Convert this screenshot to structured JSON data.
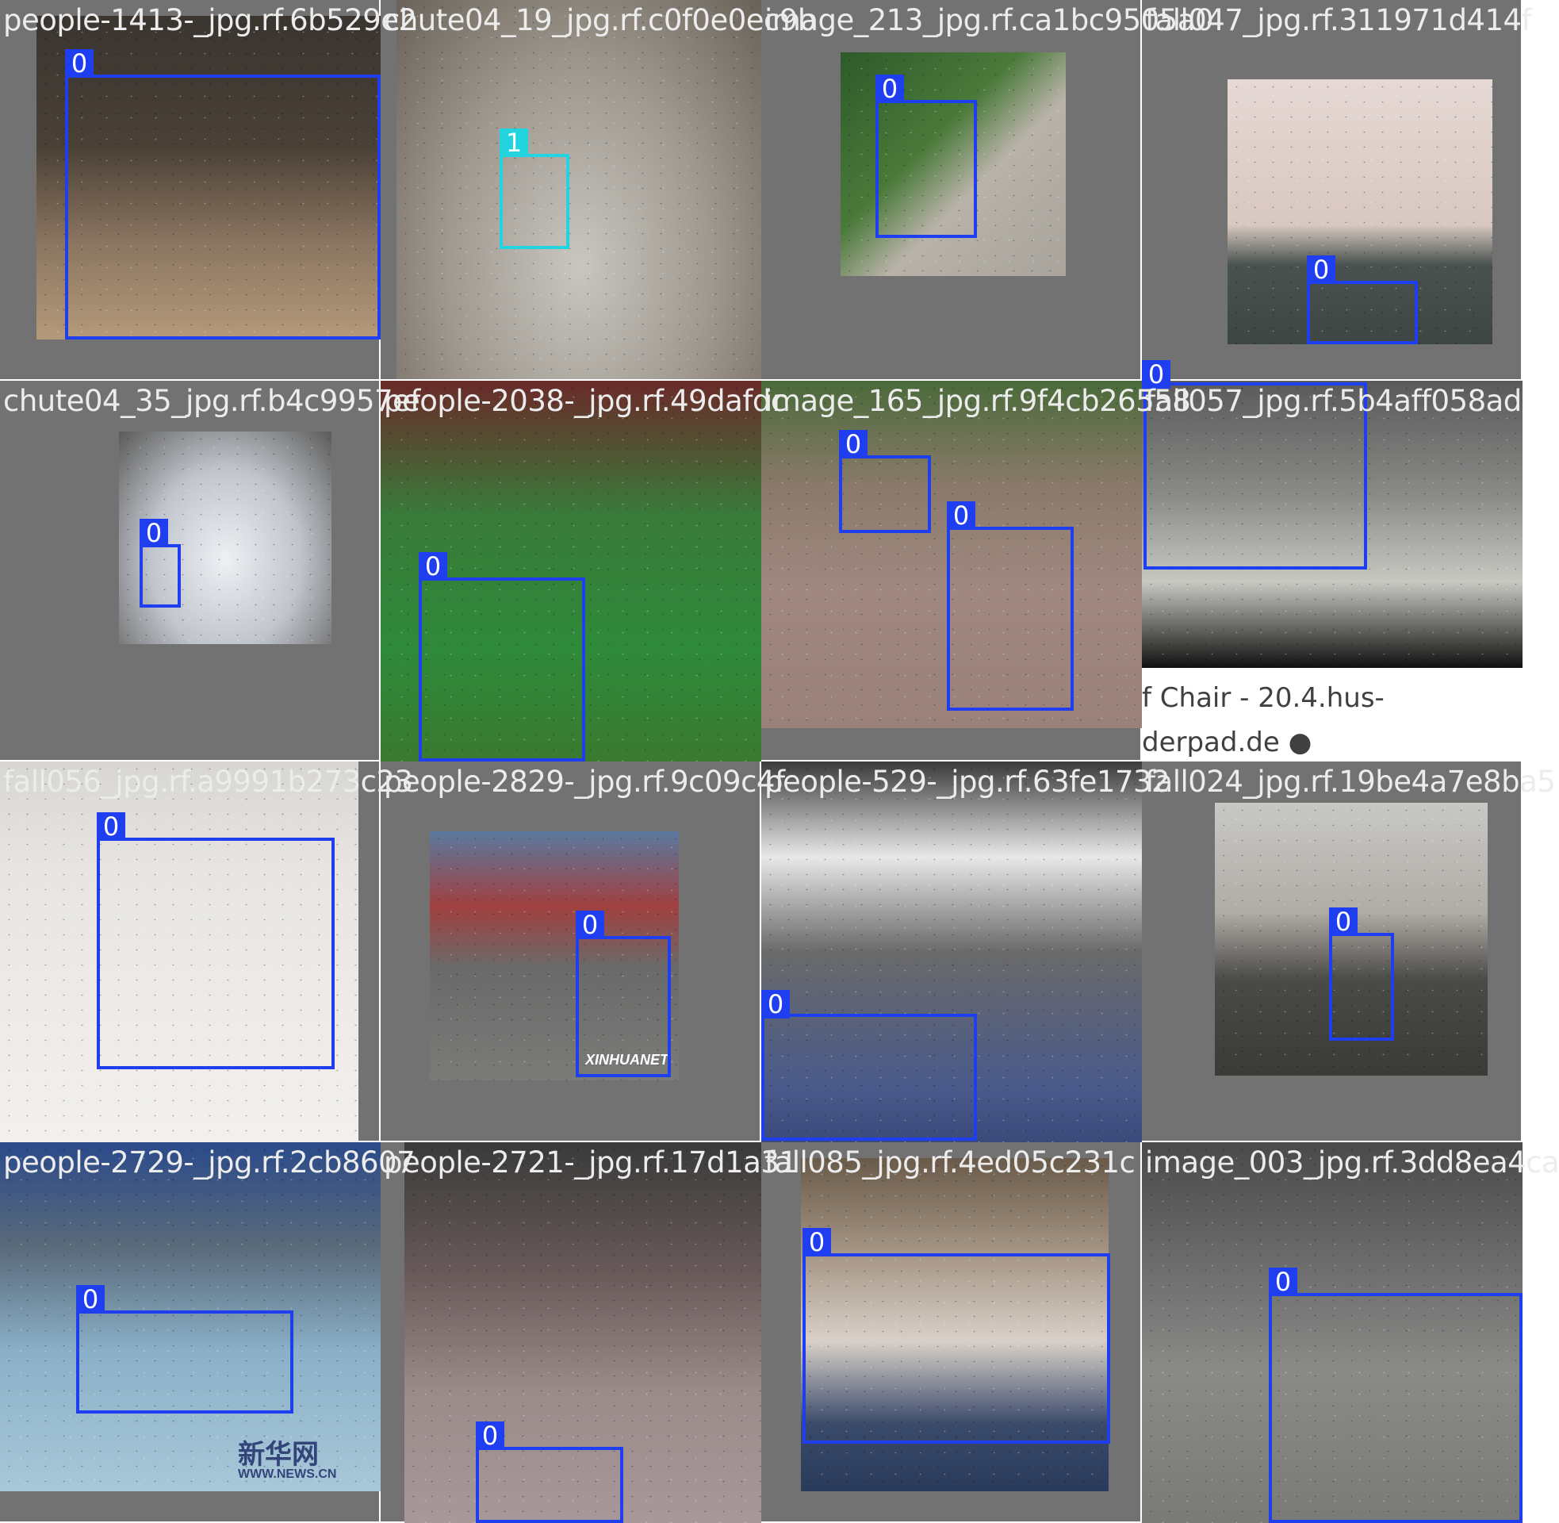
{
  "grid_title": "",
  "colors": {
    "class_0": "#1f3ef0",
    "class_1": "#21d4e0",
    "label_text": "#ececec",
    "pad_gray": "#727272"
  },
  "tiles": [
    {
      "filename": "people-1413-_jpg.rf.6b529e2",
      "photo_subject": "basketball player diving on court",
      "boxes": [
        {
          "cls": "0"
        }
      ]
    },
    {
      "filename": "chute04_19_jpg.rf.c0f0e0ec9b",
      "photo_subject": "fisheye room, person falling",
      "boxes": [
        {
          "cls": "1"
        }
      ]
    },
    {
      "filename": "image_213_jpg.rf.ca1bc9505a0",
      "photo_subject": "child falling from skateboard",
      "boxes": [
        {
          "cls": "0"
        }
      ]
    },
    {
      "filename": "fall047_jpg.rf.311971d414f",
      "photo_subject": "person lying on office floor",
      "boxes": [
        {
          "cls": "0"
        }
      ]
    },
    {
      "filename": "chute04_35_jpg.rf.b4c9957ef",
      "photo_subject": "fisheye room, person on floor",
      "boxes": [
        {
          "cls": "0"
        }
      ]
    },
    {
      "filename": "people-2038-_jpg.rf.49dafdc",
      "photo_subject": "football player falling",
      "boxes": [
        {
          "cls": "0"
        }
      ]
    },
    {
      "filename": "image_165_jpg.rf.9f4cb26558",
      "photo_subject": "people lying on pavement",
      "boxes": [
        {
          "cls": "0"
        },
        {
          "cls": "0"
        }
      ]
    },
    {
      "filename": "fall057_jpg.rf.5b4aff058ad",
      "photo_subject": "person fallen off chair",
      "boxes": [
        {
          "cls": "0"
        }
      ],
      "caption_lines": [
        "f Chair - 20.4.hus-",
        "derpad.de ●"
      ]
    },
    {
      "filename": "fall056_jpg.rf.a9991b273c23",
      "photo_subject": "man lying on floor by ladder",
      "boxes": [
        {
          "cls": "0"
        }
      ]
    },
    {
      "filename": "people-2829-_jpg.rf.9c09c4f",
      "photo_subject": "man lying on street",
      "boxes": [
        {
          "cls": "0"
        }
      ],
      "watermark": "XINHUANET"
    },
    {
      "filename": "people-529-_jpg.rf.63fe1732",
      "photo_subject": "boxer knocked down",
      "boxes": [
        {
          "cls": "0"
        }
      ]
    },
    {
      "filename": "fall024_jpg.rf.19be4a7e8ba5",
      "photo_subject": "person lying in lab",
      "boxes": [
        {
          "cls": "0"
        }
      ]
    },
    {
      "filename": "people-2729-_jpg.rf.2cb8607",
      "photo_subject": "player lying on court",
      "boxes": [
        {
          "cls": "0"
        }
      ],
      "watermark_lines": [
        "新华网",
        "WWW.NEWS.CN"
      ]
    },
    {
      "filename": "people-2721-_jpg.rf.17d1a31",
      "photo_subject": "person lying on street",
      "boxes": [
        {
          "cls": "0"
        }
      ]
    },
    {
      "filename": "fall085_jpg.rf.4ed05c231c",
      "photo_subject": "elderly person on floor",
      "boxes": [
        {
          "cls": "0"
        }
      ]
    },
    {
      "filename": "image_003_jpg.rf.3dd8ea4ca",
      "photo_subject": "person lying on road",
      "boxes": [
        {
          "cls": "0"
        }
      ]
    }
  ]
}
